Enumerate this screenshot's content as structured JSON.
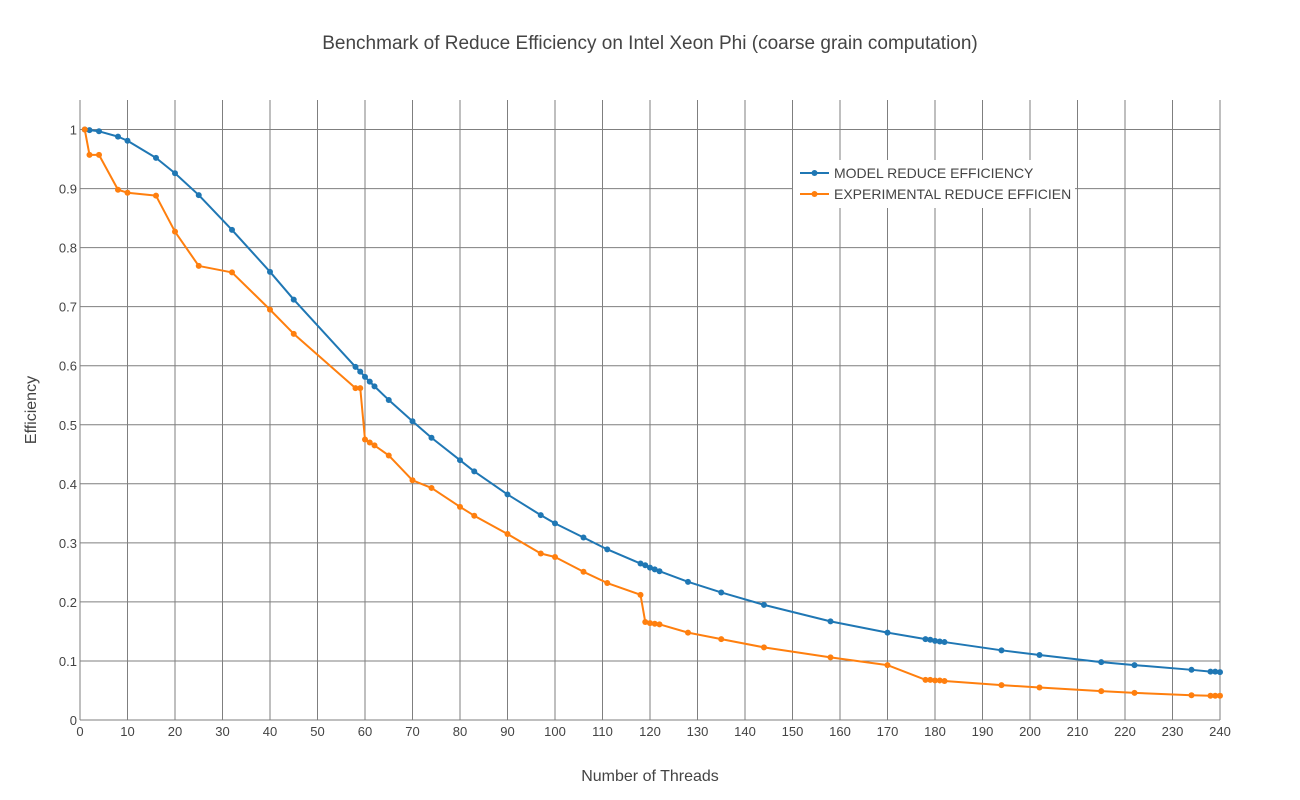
{
  "chart_data": {
    "type": "line",
    "title": "Benchmark of Reduce Efficiency on Intel Xeon Phi (coarse grain computation)",
    "xlabel": "Number of Threads",
    "ylabel": "Efficiency",
    "xlim": [
      0,
      240
    ],
    "ylim": [
      0,
      1.05
    ],
    "x_ticks": [
      0,
      10,
      20,
      30,
      40,
      50,
      60,
      70,
      80,
      90,
      100,
      110,
      120,
      130,
      140,
      150,
      160,
      170,
      180,
      190,
      200,
      210,
      220,
      230,
      240
    ],
    "y_ticks": [
      0,
      0.1,
      0.2,
      0.3,
      0.4,
      0.5,
      0.6,
      0.7,
      0.8,
      0.9,
      1
    ],
    "x_tick_labels": [
      "0",
      "10",
      "20",
      "30",
      "40",
      "50",
      "60",
      "70",
      "80",
      "90",
      "100",
      "110",
      "120",
      "130",
      "140",
      "150",
      "160",
      "170",
      "180",
      "190",
      "200",
      "210",
      "220",
      "230",
      "240"
    ],
    "y_tick_labels": [
      "0",
      "0.1",
      "0.2",
      "0.3",
      "0.4",
      "0.5",
      "0.6",
      "0.7",
      "0.8",
      "0.9",
      "1"
    ],
    "grid": true,
    "legend_position": "top-right",
    "series": [
      {
        "name": "MODEL REDUCE EFFICIENCY",
        "legend_label": "MODEL REDUCE EFFICIENCY",
        "color": "#1f77b4",
        "points": [
          [
            1,
            1.0
          ],
          [
            2,
            0.999
          ],
          [
            4,
            0.997
          ],
          [
            8,
            0.988
          ],
          [
            10,
            0.981
          ],
          [
            16,
            0.952
          ],
          [
            20,
            0.926
          ],
          [
            25,
            0.889
          ],
          [
            32,
            0.83
          ],
          [
            40,
            0.759
          ],
          [
            45,
            0.712
          ],
          [
            58,
            0.598
          ],
          [
            59,
            0.59
          ],
          [
            60,
            0.581
          ],
          [
            61,
            0.573
          ],
          [
            62,
            0.565
          ],
          [
            65,
            0.542
          ],
          [
            70,
            0.506
          ],
          [
            74,
            0.478
          ],
          [
            80,
            0.44
          ],
          [
            83,
            0.421
          ],
          [
            90,
            0.382
          ],
          [
            97,
            0.347
          ],
          [
            100,
            0.333
          ],
          [
            106,
            0.309
          ],
          [
            111,
            0.289
          ],
          [
            118,
            0.265
          ],
          [
            119,
            0.262
          ],
          [
            120,
            0.258
          ],
          [
            121,
            0.255
          ],
          [
            122,
            0.252
          ],
          [
            128,
            0.234
          ],
          [
            135,
            0.216
          ],
          [
            144,
            0.195
          ],
          [
            158,
            0.167
          ],
          [
            170,
            0.148
          ],
          [
            178,
            0.137
          ],
          [
            179,
            0.136
          ],
          [
            180,
            0.134
          ],
          [
            181,
            0.133
          ],
          [
            182,
            0.132
          ],
          [
            194,
            0.118
          ],
          [
            202,
            0.11
          ],
          [
            215,
            0.098
          ],
          [
            222,
            0.093
          ],
          [
            234,
            0.085
          ],
          [
            238,
            0.082
          ],
          [
            239,
            0.082
          ],
          [
            240,
            0.081
          ]
        ]
      },
      {
        "name": "EXPERIMENTAL REDUCE EFFICIENCY",
        "legend_label": "EXPERIMENTAL REDUCE EFFICIEN",
        "color": "#ff7f0e",
        "points": [
          [
            1,
            1.0
          ],
          [
            2,
            0.957
          ],
          [
            4,
            0.957
          ],
          [
            8,
            0.898
          ],
          [
            10,
            0.893
          ],
          [
            16,
            0.888
          ],
          [
            20,
            0.827
          ],
          [
            25,
            0.769
          ],
          [
            32,
            0.758
          ],
          [
            40,
            0.695
          ],
          [
            45,
            0.654
          ],
          [
            58,
            0.562
          ],
          [
            59,
            0.562
          ],
          [
            60,
            0.475
          ],
          [
            61,
            0.47
          ],
          [
            62,
            0.465
          ],
          [
            65,
            0.448
          ],
          [
            70,
            0.406
          ],
          [
            74,
            0.393
          ],
          [
            80,
            0.361
          ],
          [
            83,
            0.346
          ],
          [
            90,
            0.315
          ],
          [
            97,
            0.282
          ],
          [
            100,
            0.276
          ],
          [
            106,
            0.251
          ],
          [
            111,
            0.232
          ],
          [
            118,
            0.212
          ],
          [
            119,
            0.166
          ],
          [
            120,
            0.164
          ],
          [
            121,
            0.163
          ],
          [
            122,
            0.162
          ],
          [
            128,
            0.148
          ],
          [
            135,
            0.137
          ],
          [
            144,
            0.123
          ],
          [
            158,
            0.106
          ],
          [
            170,
            0.093
          ],
          [
            178,
            0.068
          ],
          [
            179,
            0.068
          ],
          [
            180,
            0.067
          ],
          [
            181,
            0.067
          ],
          [
            182,
            0.066
          ],
          [
            194,
            0.059
          ],
          [
            202,
            0.055
          ],
          [
            215,
            0.049
          ],
          [
            222,
            0.046
          ],
          [
            234,
            0.042
          ],
          [
            238,
            0.041
          ],
          [
            239,
            0.041
          ],
          [
            240,
            0.041
          ]
        ]
      }
    ]
  }
}
